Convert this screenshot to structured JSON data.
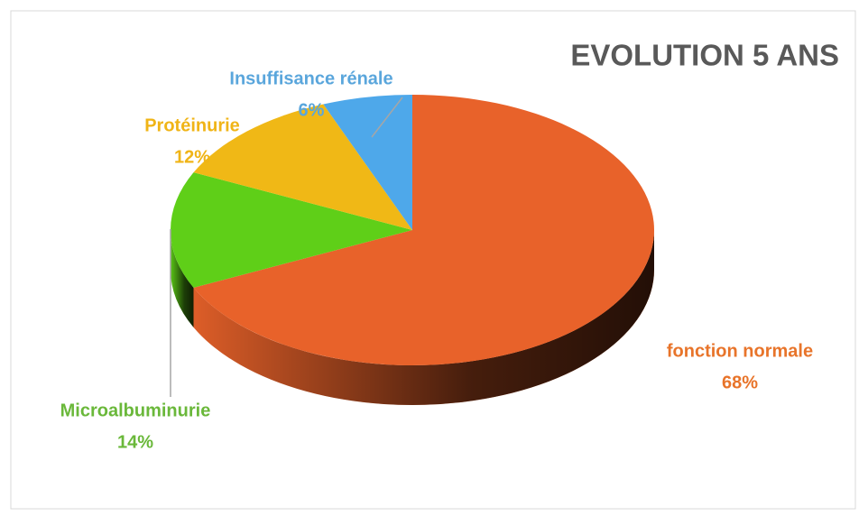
{
  "chart_data": {
    "type": "pie",
    "title": "EVOLUTION 5 ANS",
    "categories": [
      "fonction normale",
      "Microalbuminurie",
      "Protéinurie",
      "Insuffisance rénale"
    ],
    "values": [
      68,
      14,
      12,
      6
    ],
    "value_labels": [
      "68%",
      "14%",
      "12%",
      "6%"
    ],
    "colors": [
      "#e8622a",
      "#5fcf18",
      "#f0b816",
      "#4ea8ea"
    ],
    "label_colors": [
      "#e8742a",
      "#6ab83a",
      "#f0b416",
      "#5aa6dc"
    ]
  }
}
